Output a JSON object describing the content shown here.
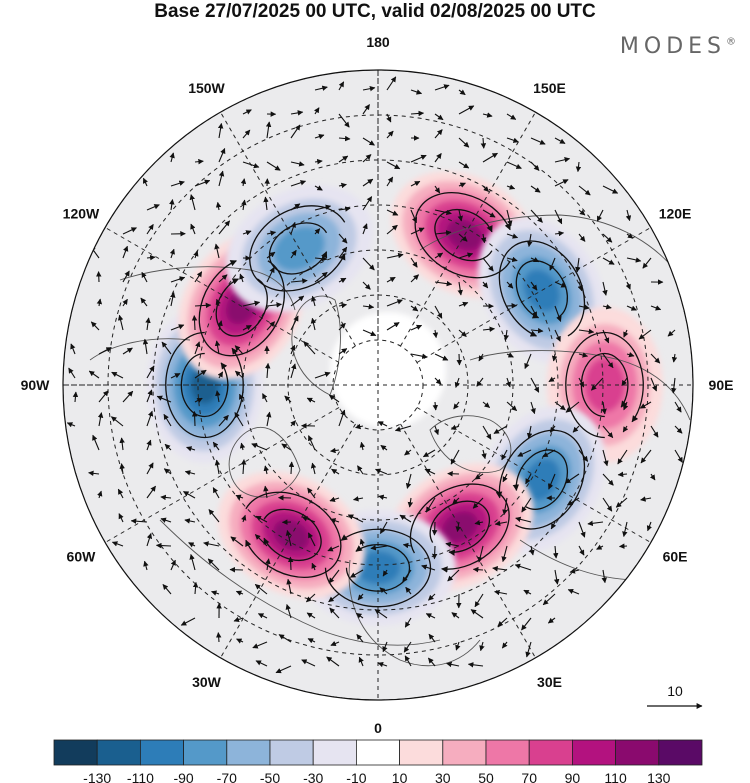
{
  "title": "Base 27/07/2025 00 UTC, valid 02/08/2025 00 UTC",
  "brand": {
    "name": "MODES",
    "mark": "®"
  },
  "map": {
    "projection": "north-polar-stereographic",
    "longitude_labels": [
      "180",
      "150E",
      "120E",
      "90E",
      "60E",
      "30E",
      "0",
      "30W",
      "60W",
      "90W",
      "120W",
      "150W"
    ],
    "reference_vector": {
      "label": "10"
    },
    "anomaly_centers": [
      {
        "sign": "positive",
        "lon_label": "150E",
        "value": 110
      },
      {
        "sign": "negative",
        "lon_label": "120E",
        "value": -90
      },
      {
        "sign": "positive",
        "lon_label": "90E",
        "value": 70
      },
      {
        "sign": "negative",
        "lon_label": "60E",
        "value": -90
      },
      {
        "sign": "positive",
        "lon_label": "30E",
        "value": 110
      },
      {
        "sign": "negative",
        "lon_label": "0",
        "value": -90
      },
      {
        "sign": "positive",
        "lon_label": "30W",
        "value": 110
      },
      {
        "sign": "negative",
        "lon_label": "90W",
        "value": -110
      },
      {
        "sign": "positive",
        "lon_label": "120W",
        "value": 110
      },
      {
        "sign": "negative",
        "lon_label": "150W",
        "value": -70
      }
    ]
  },
  "colorbar": {
    "tick_labels": [
      "-130",
      "-110",
      "-90",
      "-70",
      "-50",
      "-30",
      "-10",
      "10",
      "30",
      "50",
      "70",
      "90",
      "110",
      "130"
    ],
    "colors": [
      "#123c5c",
      "#1a5f8f",
      "#2d7db8",
      "#5499c9",
      "#8db4da",
      "#bfcbe4",
      "#e6e4f1",
      "#ffffff",
      "#fcdcdc",
      "#f6adbf",
      "#ee77a7",
      "#d9408f",
      "#b3127f",
      "#8a0a6e",
      "#5a0a66"
    ]
  }
}
